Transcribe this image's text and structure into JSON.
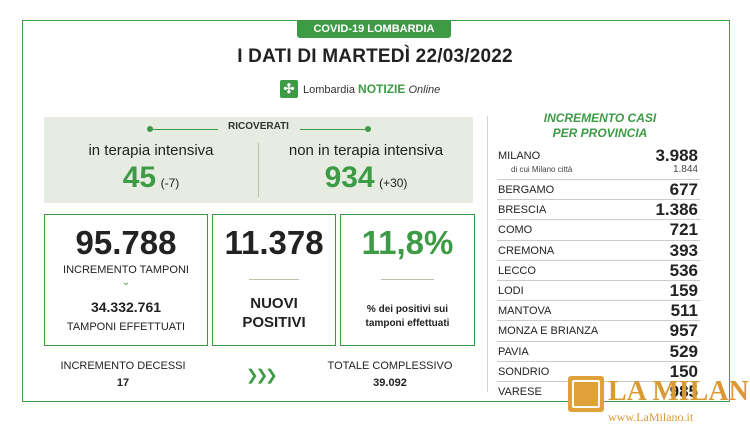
{
  "banner": "COVID-19 LOMBARDIA",
  "title": "I DATI DI MARTEDÌ 22/03/2022",
  "logo": {
    "brand": "Lombardia",
    "strong": "NOTIZIE",
    "suffix": "Online"
  },
  "ricoverati": {
    "label": "RICOVERATI",
    "intensiva_label": "in terapia intensiva",
    "intensiva_value": "45",
    "intensiva_delta": "(-7)",
    "non_intensiva_label": "non in terapia intensiva",
    "non_intensiva_value": "934",
    "non_intensiva_delta": "(+30)"
  },
  "tamponi": {
    "incremento_value": "95.788",
    "incremento_label": "INCREMENTO TAMPONI",
    "effettuati_value": "34.332.761",
    "effettuati_label": "TAMPONI EFFETTUATI"
  },
  "positivi": {
    "value": "11.378",
    "label_line1": "NUOVI",
    "label_line2": "POSITIVI"
  },
  "percentuale": {
    "value": "11,8%",
    "label_line1": "% dei positivi sui",
    "label_line2": "tamponi effettuati"
  },
  "decessi": {
    "label": "INCREMENTO DECESSI",
    "value": "17"
  },
  "totale": {
    "label": "TOTALE COMPLESSIVO",
    "value": "39.092"
  },
  "province": {
    "title_line1": "INCREMENTO CASI",
    "title_line2": "PER PROVINCIA",
    "milano": {
      "name": "MILANO",
      "value": "3.988",
      "sub_label": "di cui Milano città",
      "sub_value": "1.844"
    },
    "items": [
      {
        "name": "BERGAMO",
        "value": "677"
      },
      {
        "name": "BRESCIA",
        "value": "1.386"
      },
      {
        "name": "COMO",
        "value": "721"
      },
      {
        "name": "CREMONA",
        "value": "393"
      },
      {
        "name": "LECCO",
        "value": "536"
      },
      {
        "name": "LODI",
        "value": "159"
      },
      {
        "name": "MANTOVA",
        "value": "511"
      },
      {
        "name": "MONZA E BRIANZA",
        "value": "957"
      },
      {
        "name": "PAVIA",
        "value": "529"
      },
      {
        "name": "SONDRIO",
        "value": "150"
      },
      {
        "name": "VARESE",
        "value": "985"
      }
    ]
  },
  "watermark": {
    "name": "LA MILANO",
    "url": "www.LaMilano.it"
  },
  "colors": {
    "accent": "#3d9b46",
    "panel": "#e6ece1",
    "watermark": "#d99a36"
  }
}
